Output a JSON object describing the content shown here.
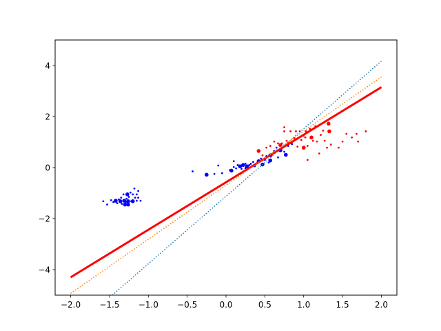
{
  "chart_data": {
    "type": "scatter",
    "title": "",
    "xlabel": "",
    "ylabel": "",
    "xlim": [
      -2.2,
      2.2
    ],
    "ylim": [
      -5,
      5
    ],
    "grid": false,
    "legend": "none",
    "xticks": [
      -2.0,
      -1.5,
      -1.0,
      -0.5,
      0.0,
      0.5,
      1.0,
      1.5,
      2.0
    ],
    "xtick_labels": [
      "−2.0",
      "−1.5",
      "−1.0",
      "−0.5",
      "0.0",
      "0.5",
      "1.0",
      "1.5",
      "2.0"
    ],
    "yticks": [
      -4,
      -2,
      0,
      2,
      4
    ],
    "ytick_labels": [
      "−4",
      "−2",
      "0",
      "2",
      "4"
    ],
    "series": [
      {
        "kind": "points",
        "color": "#0000ff",
        "points": [
          [
            -1.58,
            -1.32,
            1
          ],
          [
            -1.53,
            -1.45,
            1
          ],
          [
            -1.48,
            -1.28,
            1
          ],
          [
            -1.45,
            -1.35,
            1
          ],
          [
            -1.42,
            -1.3,
            2
          ],
          [
            -1.4,
            -1.4,
            1
          ],
          [
            -1.38,
            -1.25,
            1
          ],
          [
            -1.36,
            -1.32,
            2
          ],
          [
            -1.35,
            -1.18,
            1
          ],
          [
            -1.34,
            -1.42,
            1
          ],
          [
            -1.32,
            -1.05,
            1
          ],
          [
            -1.31,
            -1.3,
            2
          ],
          [
            -1.3,
            -1.45,
            2
          ],
          [
            -1.29,
            -1.35,
            1
          ],
          [
            -1.28,
            -1.22,
            1
          ],
          [
            -1.27,
            -1.05,
            2
          ],
          [
            -1.26,
            -1.32,
            2
          ],
          [
            -1.26,
            -1.45,
            2
          ],
          [
            -1.25,
            -1.15,
            1
          ],
          [
            -1.23,
            -0.98,
            1
          ],
          [
            -1.22,
            -1.32,
            1
          ],
          [
            -1.2,
            -1.05,
            1
          ],
          [
            -1.2,
            -1.32,
            2
          ],
          [
            -1.18,
            -0.82,
            1
          ],
          [
            -1.17,
            -1.18,
            1
          ],
          [
            -1.15,
            -1.3,
            1
          ],
          [
            -1.15,
            -1.05,
            1
          ],
          [
            -1.13,
            -0.92,
            1
          ],
          [
            -1.13,
            -1.18,
            1
          ],
          [
            -1.1,
            -1.3,
            1
          ],
          [
            -0.43,
            -0.15,
            1
          ],
          [
            -0.25,
            -0.28,
            2
          ],
          [
            -0.15,
            -0.25,
            1
          ],
          [
            -0.1,
            0.08,
            1
          ],
          [
            -0.05,
            -0.22,
            1
          ],
          [
            0.05,
            -0.1,
            1
          ],
          [
            0.07,
            -0.12,
            2
          ],
          [
            0.1,
            0.02,
            1
          ],
          [
            0.1,
            0.25,
            1
          ],
          [
            0.13,
            -0.03,
            1
          ],
          [
            0.15,
            0.1,
            1
          ],
          [
            0.18,
            0.05,
            2
          ],
          [
            0.2,
            -0.05,
            1
          ],
          [
            0.22,
            0.1,
            2
          ],
          [
            0.25,
            0.15,
            1
          ],
          [
            0.25,
            -0.02,
            1
          ],
          [
            0.27,
            0.05,
            2
          ],
          [
            0.3,
            0.1,
            1
          ],
          [
            0.32,
            0.15,
            1
          ],
          [
            0.35,
            0.22,
            1
          ],
          [
            0.37,
            0.05,
            1
          ],
          [
            0.4,
            0.18,
            1
          ],
          [
            0.42,
            0.25,
            2
          ],
          [
            0.45,
            0.35,
            1
          ],
          [
            0.47,
            0.12,
            2
          ],
          [
            0.5,
            0.3,
            1
          ],
          [
            0.52,
            0.45,
            1
          ],
          [
            0.55,
            0.2,
            1
          ],
          [
            0.57,
            0.28,
            2
          ],
          [
            0.57,
            0.48,
            2
          ],
          [
            0.6,
            0.55,
            1
          ],
          [
            0.62,
            0.65,
            1
          ],
          [
            0.65,
            0.78,
            1
          ],
          [
            0.67,
            0.4,
            1
          ],
          [
            0.7,
            0.68,
            2
          ],
          [
            0.72,
            0.78,
            1
          ],
          [
            0.75,
            0.62,
            1
          ],
          [
            0.77,
            0.5,
            2
          ],
          [
            0.8,
            0.85,
            1
          ],
          [
            0.85,
            0.92,
            1
          ]
        ]
      },
      {
        "kind": "points",
        "color": "#ff0000",
        "points": [
          [
            0.42,
            0.65,
            2
          ],
          [
            0.47,
            0.48,
            1
          ],
          [
            0.52,
            0.78,
            1
          ],
          [
            0.57,
            0.85,
            1
          ],
          [
            0.62,
            1.02,
            1
          ],
          [
            0.67,
            0.95,
            1
          ],
          [
            0.7,
            0.88,
            2
          ],
          [
            0.72,
            0.95,
            1
          ],
          [
            0.75,
            1.58,
            1
          ],
          [
            0.75,
            1.42,
            1
          ],
          [
            0.78,
            1.05,
            1
          ],
          [
            0.8,
            0.98,
            1
          ],
          [
            0.83,
            1.42,
            1
          ],
          [
            0.85,
            1.02,
            1
          ],
          [
            0.88,
            1.15,
            1
          ],
          [
            0.9,
            1.42,
            1
          ],
          [
            0.92,
            0.82,
            1
          ],
          [
            0.95,
            1.42,
            1
          ],
          [
            0.97,
            1.08,
            1
          ],
          [
            1.0,
            0.78,
            2
          ],
          [
            1.0,
            1.25,
            1
          ],
          [
            1.02,
            1.18,
            1
          ],
          [
            1.03,
            1.42,
            1
          ],
          [
            1.05,
            0.85,
            1
          ],
          [
            1.05,
            0.3,
            1
          ],
          [
            1.08,
            1.52,
            1
          ],
          [
            1.1,
            1.18,
            2
          ],
          [
            1.12,
            1.05,
            1
          ],
          [
            1.15,
            1.62,
            1
          ],
          [
            1.17,
            1.02,
            1
          ],
          [
            1.2,
            0.55,
            1
          ],
          [
            1.22,
            1.28,
            1
          ],
          [
            1.25,
            1.45,
            1
          ],
          [
            1.27,
            1.05,
            1
          ],
          [
            1.3,
            0.78,
            1
          ],
          [
            1.32,
            1.72,
            2
          ],
          [
            1.33,
            1.42,
            2
          ],
          [
            1.35,
            0.9,
            1
          ],
          [
            1.45,
            0.78,
            1
          ],
          [
            1.5,
            1.02,
            1
          ],
          [
            1.55,
            1.32,
            1
          ],
          [
            1.62,
            1.18,
            1
          ],
          [
            1.68,
            1.32,
            1
          ],
          [
            1.7,
            1.02,
            1
          ],
          [
            1.8,
            1.42,
            1
          ]
        ]
      },
      {
        "kind": "line",
        "style": "solid",
        "color": "#ff0000",
        "x": [
          -2.0,
          2.0
        ],
        "y": [
          -4.3,
          3.15
        ]
      },
      {
        "kind": "line",
        "style": "dotted",
        "color": "#ff7f0e",
        "x": [
          -2.0,
          2.0
        ],
        "y": [
          -4.93,
          3.55
        ]
      },
      {
        "kind": "line",
        "style": "dotted",
        "color": "#1f77b4",
        "x": [
          -2.0,
          2.0
        ],
        "y": [
          -6.42,
          4.17
        ]
      }
    ]
  }
}
